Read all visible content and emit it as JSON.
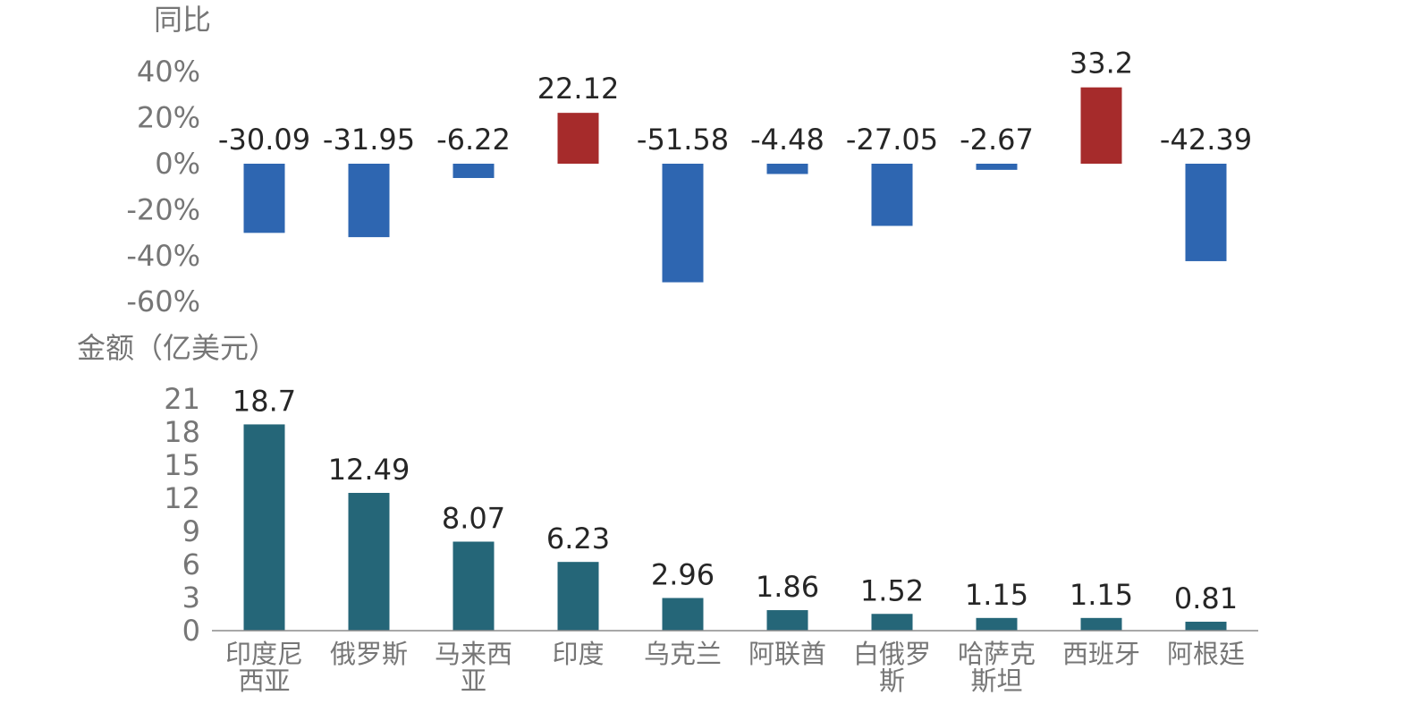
{
  "chart_data": [
    {
      "type": "bar",
      "title": "",
      "ylabel": "同比",
      "xlabel": "",
      "categories": [
        "印度尼西亚",
        "俄罗斯",
        "马来西亚",
        "印度",
        "乌克兰",
        "阿联酋",
        "白俄罗斯",
        "哈萨克斯坦",
        "西班牙",
        "阿根廷"
      ],
      "values": [
        -30.09,
        -31.95,
        -6.22,
        22.12,
        -51.58,
        -4.48,
        -27.05,
        -2.67,
        33.2,
        -42.39
      ],
      "ylim": [
        -60,
        40
      ],
      "y_ticks": [
        "40%",
        "20%",
        "0%",
        "-20%",
        "-40%",
        "-60%"
      ],
      "y_tick_values": [
        40,
        20,
        0,
        -20,
        -40,
        -60
      ],
      "colors": {
        "positive": "#a62b2b",
        "negative": "#2e66b1"
      },
      "grid": false,
      "legend": "none"
    },
    {
      "type": "bar",
      "title": "",
      "ylabel": "金额（亿美元）",
      "xlabel": "",
      "categories": [
        "印度尼西亚",
        "俄罗斯",
        "马来西亚",
        "印度",
        "乌克兰",
        "阿联酋",
        "白俄罗斯",
        "哈萨克斯坦",
        "西班牙",
        "阿根廷"
      ],
      "category_lines": [
        [
          "印度尼",
          "西亚"
        ],
        [
          "俄罗斯"
        ],
        [
          "马来西",
          "亚"
        ],
        [
          "印度"
        ],
        [
          "乌克兰"
        ],
        [
          "阿联酋"
        ],
        [
          "白俄罗",
          "斯"
        ],
        [
          "哈萨克",
          "斯坦"
        ],
        [
          "西班牙"
        ],
        [
          "阿根廷"
        ]
      ],
      "values": [
        18.7,
        12.49,
        8.07,
        6.23,
        2.96,
        1.86,
        1.52,
        1.15,
        1.15,
        0.81
      ],
      "value_labels": [
        "18.7",
        "12.49",
        "8.07",
        "6.23",
        "2.96",
        "1.86",
        "1.52",
        "1.15",
        "1.15",
        "0.81"
      ],
      "ylim": [
        0,
        21
      ],
      "y_ticks": [
        "21",
        "18",
        "15",
        "12",
        "9",
        "6",
        "3",
        "0"
      ],
      "y_tick_values": [
        21,
        18,
        15,
        12,
        9,
        6,
        3,
        0
      ],
      "colors": {
        "bar": "#256678",
        "axis": "#8c8c8c"
      },
      "grid": false,
      "legend": "none"
    }
  ]
}
